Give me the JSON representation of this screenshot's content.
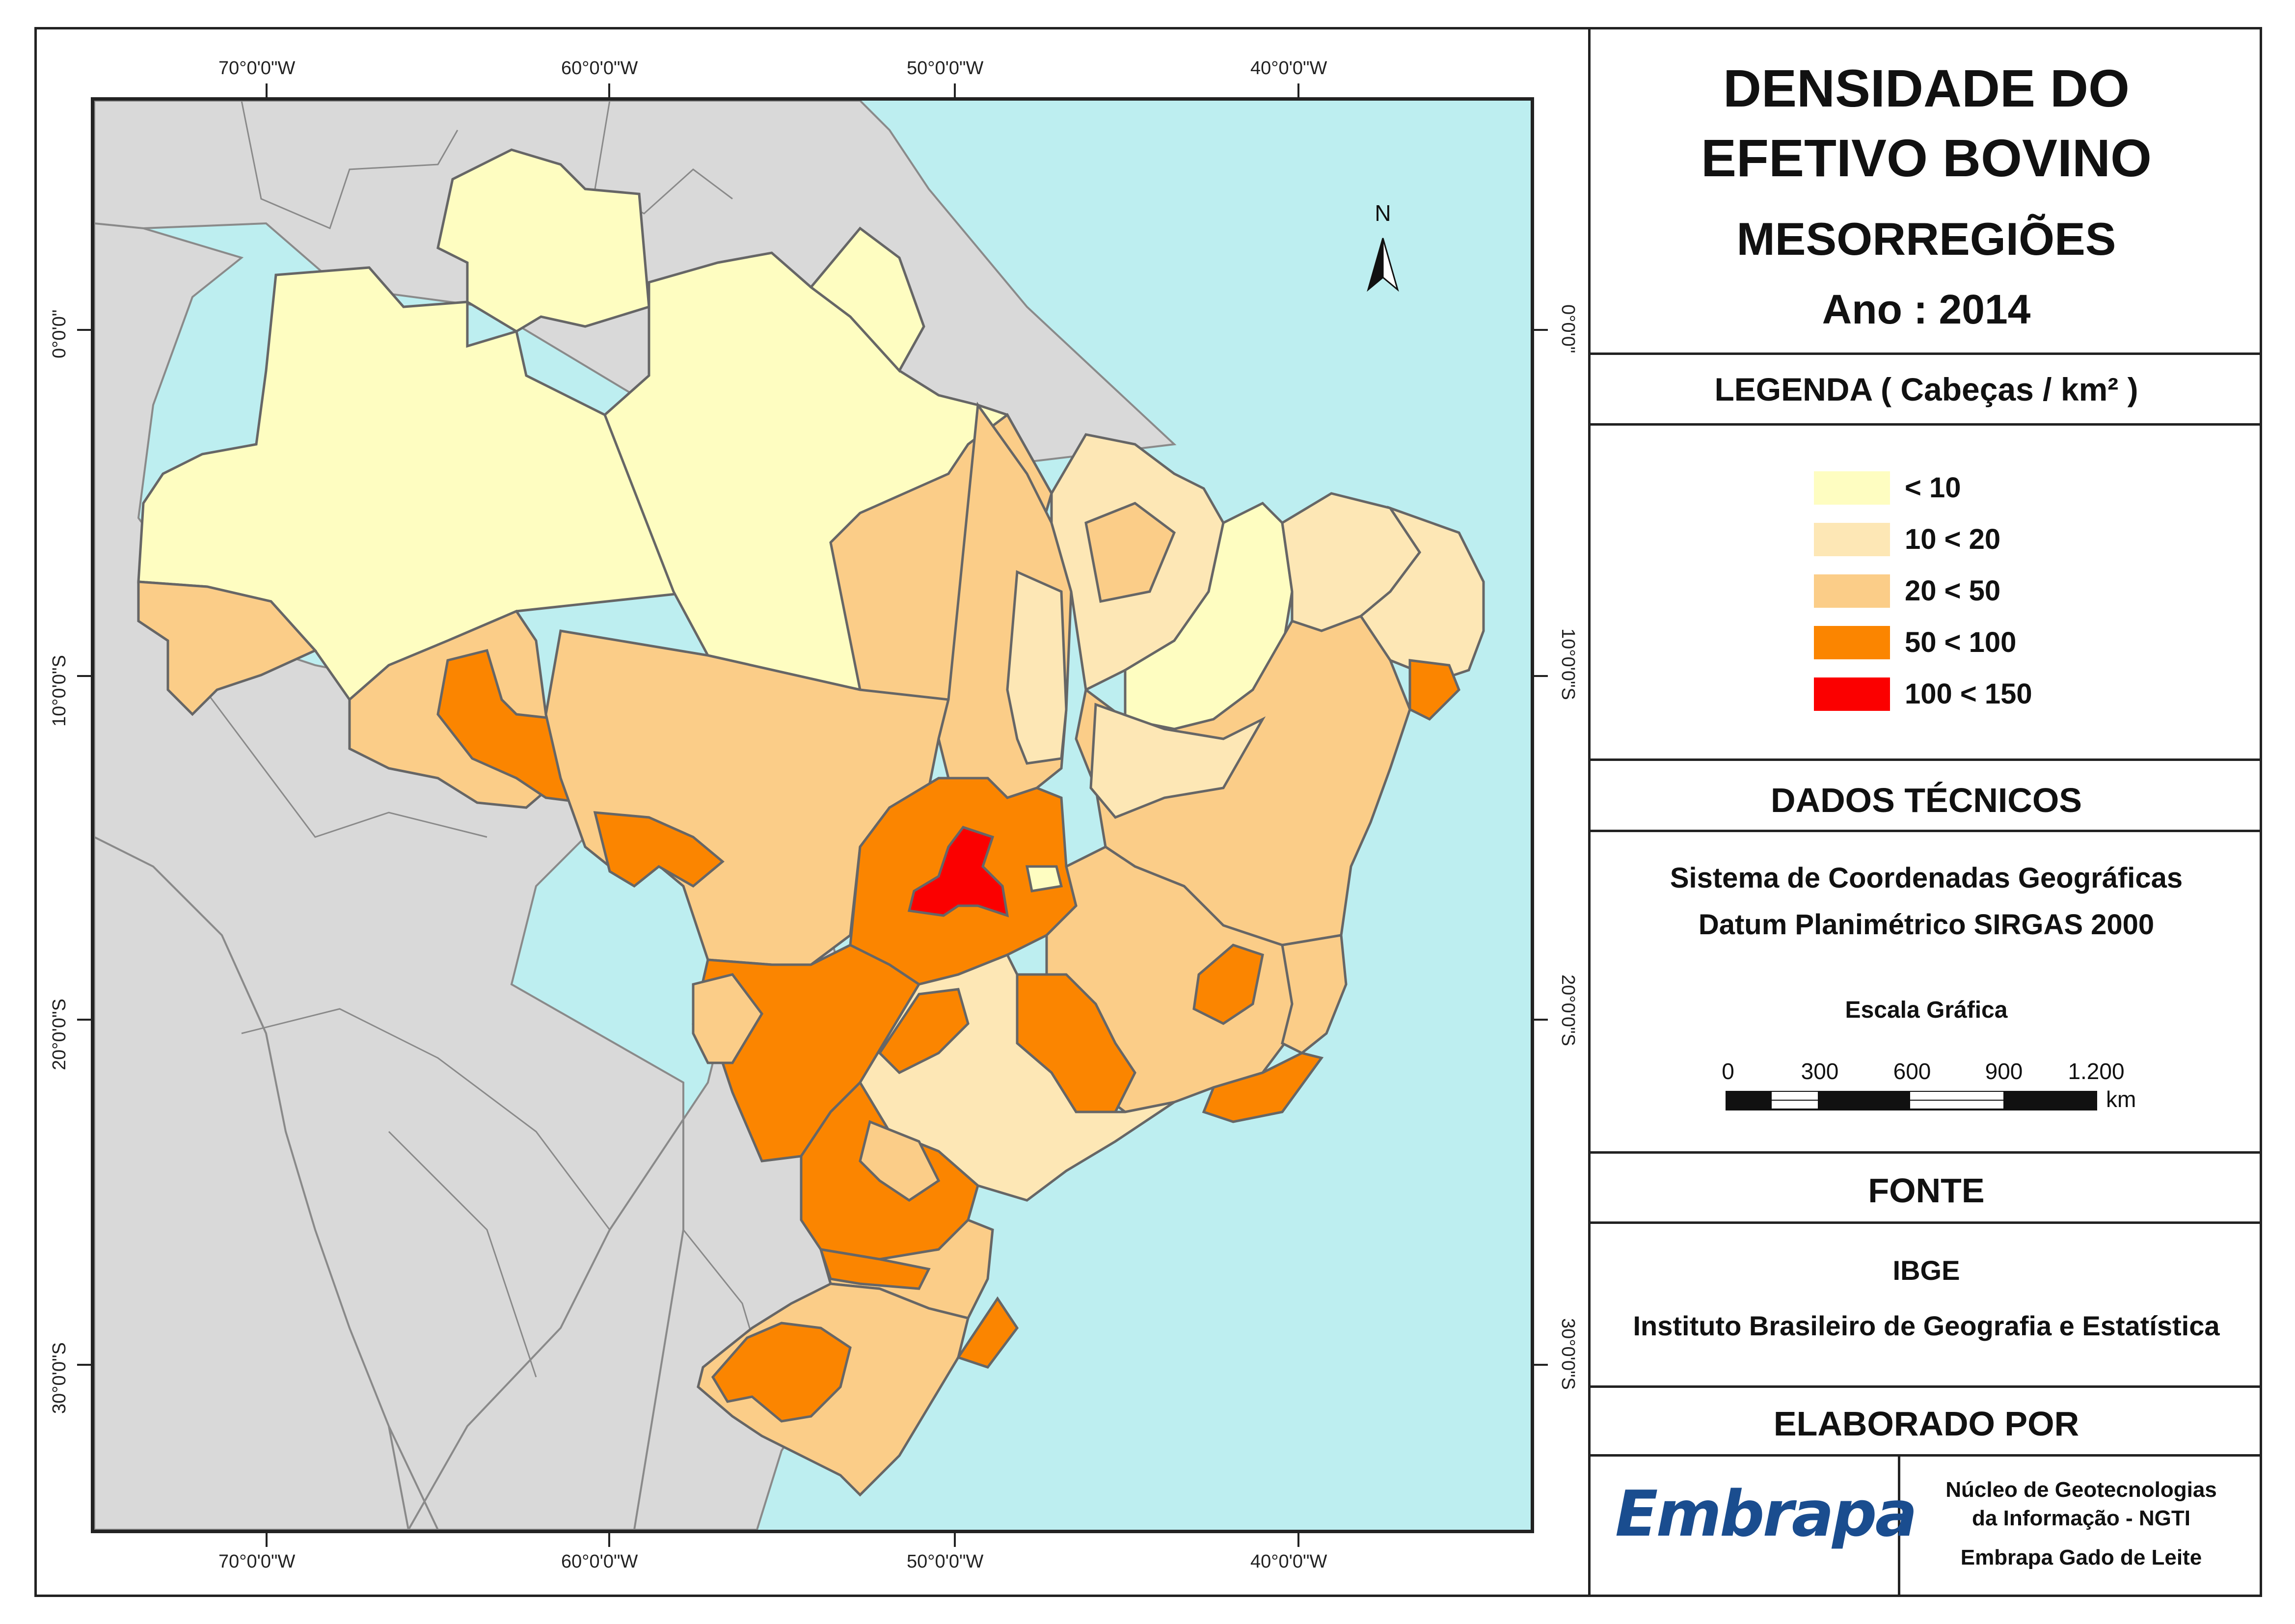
{
  "title": {
    "line1": "DENSIDADE DO",
    "line2": "EFETIVO BOVINO",
    "line3": "MESORREGIÕES",
    "line4": "Ano : 2014"
  },
  "legend": {
    "header": "LEGENDA ( Cabeças / km² )",
    "items": [
      {
        "label": "< 10",
        "color": "#fefdc1"
      },
      {
        "label": "10 < 20",
        "color": "#fde7b5"
      },
      {
        "label": "20 < 50",
        "color": "#fbcd88"
      },
      {
        "label": "50 < 100",
        "color": "#fb8500"
      },
      {
        "label": "100 < 150",
        "color": "#fb0000"
      }
    ]
  },
  "technical": {
    "header": "DADOS TÉCNICOS",
    "line1": "Sistema de Coordenadas Geográficas",
    "line2": "Datum Planimétrico SIRGAS 2000",
    "scale_title": "Escala Gráfica",
    "scale_ticks": [
      "0",
      "300",
      "600",
      "900",
      "1.200"
    ],
    "scale_unit": "km"
  },
  "source": {
    "header": "FONTE",
    "line1": "IBGE",
    "line2": "Instituto Brasileiro de Geografia e Estatística"
  },
  "author": {
    "header": "ELABORADO POR",
    "logo_text": "Embrapa",
    "line1": "Núcleo de Geotecnologias",
    "line2": "da Informação - NGTI",
    "line3": "Embrapa Gado de Leite"
  },
  "map": {
    "north_label": "N",
    "lon_labels": [
      "70°0'0\"W",
      "60°0'0\"W",
      "50°0'0\"W",
      "40°0'0\"W"
    ],
    "lat_labels": [
      "0°0'0\"",
      "10°0'0\"S",
      "20°0'0\"S",
      "30°0'0\"S"
    ],
    "colors": {
      "ocean": "#bdeef0",
      "land_other": "#d9d9d9",
      "border": "#666666"
    }
  }
}
